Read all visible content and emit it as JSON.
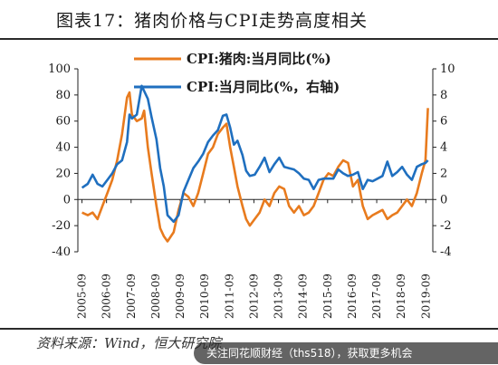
{
  "header": {
    "title": "图表17：猪肉价格与CPI走势高度相关"
  },
  "footer": {
    "source": "资料来源：Wind，恒大研究院",
    "watermark": "关注同花顺财经（ths518），获取更多机会",
    "watermark_logo": "同花顺财经"
  },
  "colors": {
    "pork": "#E87B1E",
    "cpi": "#1F6FBF",
    "axis": "#222222",
    "text": "#1a1a1a"
  },
  "chart_data": {
    "type": "line",
    "x_tick_labels": [
      "2005-09",
      "2006-09",
      "2007-09",
      "2008-09",
      "2009-09",
      "2010-09",
      "2011-09",
      "2012-09",
      "2013-09",
      "2014-09",
      "2015-09",
      "2016-09",
      "2017-09",
      "2018-09",
      "2019-09"
    ],
    "y_left": {
      "min": -40,
      "max": 100,
      "ticks": [
        "-40",
        "-20",
        "0",
        "20",
        "40",
        "60",
        "80",
        "100"
      ]
    },
    "y_right": {
      "min": -4,
      "max": 10,
      "ticks": [
        "-4",
        "-2",
        "0",
        "2",
        "4",
        "6",
        "8",
        "10"
      ]
    },
    "legend_placement": "top-center",
    "series": [
      {
        "name": "CPI:猪肉:当月同比(%)",
        "axis": "left",
        "points": [
          [
            2005.67,
            -10
          ],
          [
            2005.9,
            -12
          ],
          [
            2006.1,
            -10
          ],
          [
            2006.3,
            -15
          ],
          [
            2006.5,
            -5
          ],
          [
            2006.7,
            5
          ],
          [
            2006.9,
            15
          ],
          [
            2007.1,
            30
          ],
          [
            2007.3,
            50
          ],
          [
            2007.5,
            78
          ],
          [
            2007.6,
            82
          ],
          [
            2007.7,
            65
          ],
          [
            2007.9,
            60
          ],
          [
            2008.1,
            62
          ],
          [
            2008.2,
            68
          ],
          [
            2008.35,
            40
          ],
          [
            2008.5,
            20
          ],
          [
            2008.7,
            -5
          ],
          [
            2008.85,
            -22
          ],
          [
            2009.0,
            -28
          ],
          [
            2009.15,
            -32
          ],
          [
            2009.4,
            -25
          ],
          [
            2009.6,
            -8
          ],
          [
            2009.8,
            5
          ],
          [
            2010.0,
            2
          ],
          [
            2010.2,
            -5
          ],
          [
            2010.4,
            5
          ],
          [
            2010.6,
            20
          ],
          [
            2010.8,
            35
          ],
          [
            2011.0,
            40
          ],
          [
            2011.2,
            50
          ],
          [
            2011.4,
            55
          ],
          [
            2011.55,
            58
          ],
          [
            2011.7,
            40
          ],
          [
            2011.85,
            25
          ],
          [
            2012.0,
            10
          ],
          [
            2012.2,
            -5
          ],
          [
            2012.35,
            -15
          ],
          [
            2012.5,
            -20
          ],
          [
            2012.7,
            -15
          ],
          [
            2012.9,
            -10
          ],
          [
            2013.1,
            0
          ],
          [
            2013.3,
            -5
          ],
          [
            2013.5,
            5
          ],
          [
            2013.7,
            10
          ],
          [
            2013.9,
            8
          ],
          [
            2014.1,
            -5
          ],
          [
            2014.3,
            -10
          ],
          [
            2014.5,
            -5
          ],
          [
            2014.7,
            -12
          ],
          [
            2014.9,
            -10
          ],
          [
            2015.1,
            -5
          ],
          [
            2015.3,
            5
          ],
          [
            2015.5,
            15
          ],
          [
            2015.7,
            20
          ],
          [
            2015.9,
            18
          ],
          [
            2016.1,
            25
          ],
          [
            2016.3,
            30
          ],
          [
            2016.5,
            28
          ],
          [
            2016.7,
            10
          ],
          [
            2016.9,
            15
          ],
          [
            2017.1,
            -5
          ],
          [
            2017.3,
            -15
          ],
          [
            2017.5,
            -12
          ],
          [
            2017.7,
            -10
          ],
          [
            2017.9,
            -8
          ],
          [
            2018.1,
            -15
          ],
          [
            2018.3,
            -12
          ],
          [
            2018.5,
            -10
          ],
          [
            2018.7,
            -5
          ],
          [
            2018.9,
            0
          ],
          [
            2019.1,
            -5
          ],
          [
            2019.3,
            5
          ],
          [
            2019.5,
            20
          ],
          [
            2019.65,
            30
          ],
          [
            2019.75,
            70
          ]
        ]
      },
      {
        "name": "CPI:当月同比(%，右轴)",
        "axis": "right",
        "points": [
          [
            2005.67,
            0.9
          ],
          [
            2005.9,
            1.2
          ],
          [
            2006.1,
            1.9
          ],
          [
            2006.3,
            1.2
          ],
          [
            2006.5,
            1.0
          ],
          [
            2006.7,
            1.5
          ],
          [
            2006.9,
            2.0
          ],
          [
            2007.1,
            2.7
          ],
          [
            2007.3,
            3.0
          ],
          [
            2007.5,
            4.4
          ],
          [
            2007.6,
            6.5
          ],
          [
            2007.7,
            6.2
          ],
          [
            2007.9,
            6.5
          ],
          [
            2008.1,
            8.7
          ],
          [
            2008.2,
            8.3
          ],
          [
            2008.35,
            7.7
          ],
          [
            2008.5,
            6.3
          ],
          [
            2008.7,
            4.6
          ],
          [
            2008.85,
            2.4
          ],
          [
            2009.0,
            1.0
          ],
          [
            2009.15,
            -1.2
          ],
          [
            2009.4,
            -1.7
          ],
          [
            2009.6,
            -1.2
          ],
          [
            2009.8,
            0.6
          ],
          [
            2010.0,
            1.5
          ],
          [
            2010.2,
            2.4
          ],
          [
            2010.4,
            2.9
          ],
          [
            2010.6,
            3.5
          ],
          [
            2010.8,
            4.4
          ],
          [
            2011.0,
            4.9
          ],
          [
            2011.2,
            5.3
          ],
          [
            2011.4,
            6.4
          ],
          [
            2011.55,
            6.5
          ],
          [
            2011.7,
            5.5
          ],
          [
            2011.85,
            4.2
          ],
          [
            2012.0,
            4.5
          ],
          [
            2012.2,
            3.4
          ],
          [
            2012.35,
            2.2
          ],
          [
            2012.5,
            1.8
          ],
          [
            2012.7,
            1.9
          ],
          [
            2012.9,
            2.5
          ],
          [
            2013.1,
            3.2
          ],
          [
            2013.3,
            2.1
          ],
          [
            2013.5,
            2.7
          ],
          [
            2013.7,
            3.2
          ],
          [
            2013.9,
            2.5
          ],
          [
            2014.1,
            2.4
          ],
          [
            2014.3,
            2.3
          ],
          [
            2014.5,
            2.0
          ],
          [
            2014.7,
            1.6
          ],
          [
            2014.9,
            1.5
          ],
          [
            2015.1,
            0.8
          ],
          [
            2015.3,
            1.5
          ],
          [
            2015.5,
            1.6
          ],
          [
            2015.7,
            1.6
          ],
          [
            2015.9,
            1.6
          ],
          [
            2016.1,
            2.3
          ],
          [
            2016.3,
            2.0
          ],
          [
            2016.5,
            1.8
          ],
          [
            2016.7,
            1.9
          ],
          [
            2016.9,
            2.1
          ],
          [
            2017.1,
            0.8
          ],
          [
            2017.3,
            1.5
          ],
          [
            2017.5,
            1.4
          ],
          [
            2017.7,
            1.6
          ],
          [
            2017.9,
            1.8
          ],
          [
            2018.1,
            2.9
          ],
          [
            2018.3,
            1.8
          ],
          [
            2018.5,
            2.1
          ],
          [
            2018.7,
            2.5
          ],
          [
            2018.9,
            1.9
          ],
          [
            2019.1,
            1.5
          ],
          [
            2019.3,
            2.5
          ],
          [
            2019.5,
            2.7
          ],
          [
            2019.65,
            2.8
          ],
          [
            2019.75,
            3.0
          ]
        ]
      }
    ]
  }
}
